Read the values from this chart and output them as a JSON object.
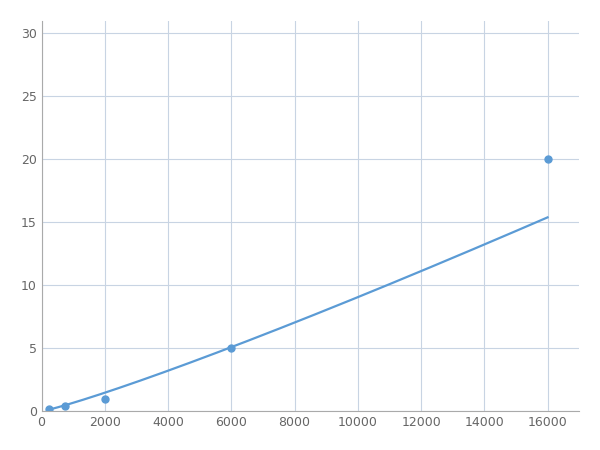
{
  "x": [
    250,
    750,
    2000,
    6000,
    16000
  ],
  "y": [
    0.2,
    0.4,
    1.0,
    5.0,
    20.0
  ],
  "line_color": "#5b9bd5",
  "marker_color": "#5b9bd5",
  "marker_size": 5,
  "linewidth": 1.6,
  "xlim": [
    0,
    17000
  ],
  "ylim": [
    0,
    31
  ],
  "xticks": [
    0,
    2000,
    4000,
    6000,
    8000,
    10000,
    12000,
    14000,
    16000
  ],
  "yticks": [
    0,
    5,
    10,
    15,
    20,
    25,
    30
  ],
  "grid_color": "#c8d4e3",
  "background_color": "#ffffff",
  "spine_color": "#aaaaaa",
  "tick_label_color": "#666666",
  "tick_label_size": 9
}
